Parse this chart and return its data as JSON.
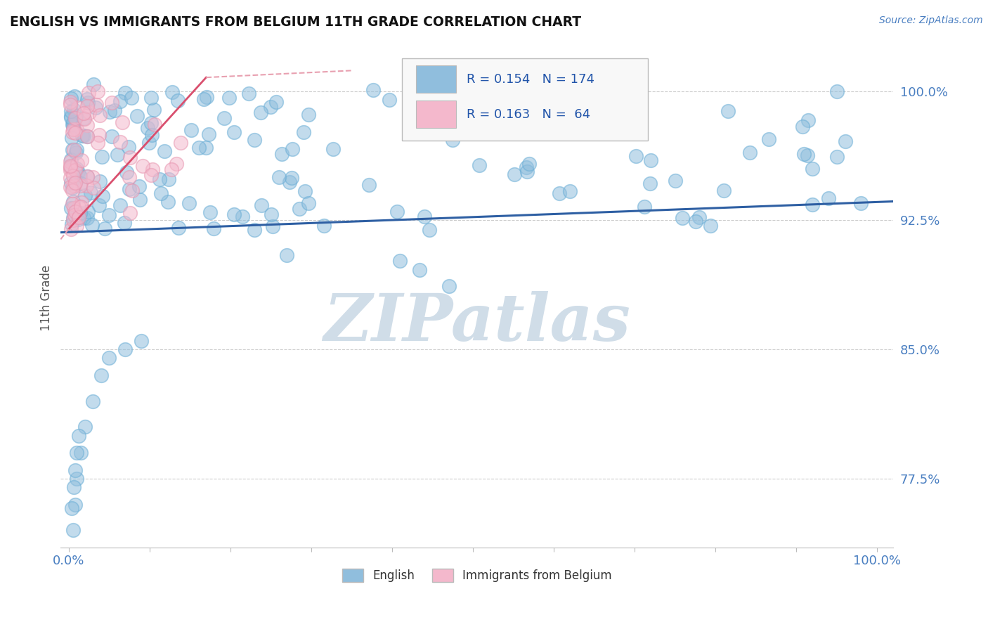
{
  "title": "ENGLISH VS IMMIGRANTS FROM BELGIUM 11TH GRADE CORRELATION CHART",
  "source_text": "Source: ZipAtlas.com",
  "ylabel": "11th Grade",
  "xlim": [
    -0.01,
    1.02
  ],
  "ylim": [
    0.735,
    1.025
  ],
  "yticks": [
    0.775,
    0.85,
    0.925,
    1.0
  ],
  "ytick_labels": [
    "77.5%",
    "85.0%",
    "92.5%",
    "100.0%"
  ],
  "xtick_labels": [
    "0.0%",
    "",
    "",
    "",
    "",
    "",
    "",
    "",
    "",
    "",
    "100.0%"
  ],
  "english_color": "#90bedd",
  "english_edge_color": "#6aaed6",
  "immigrants_color": "#f4b8cc",
  "immigrants_edge_color": "#e896b0",
  "english_trend_color": "#2e5fa3",
  "immigrants_trend_color": "#d94f6e",
  "immigrants_trend_dash_color": "#e8a0b0",
  "background_color": "#ffffff",
  "grid_color": "#cccccc",
  "watermark_color": "#d0dde8",
  "tick_label_color": "#4a7fc1",
  "source_color": "#4a7fc1",
  "legend_text_color": "#2255aa",
  "ylabel_color": "#555555",
  "title_color": "#111111"
}
